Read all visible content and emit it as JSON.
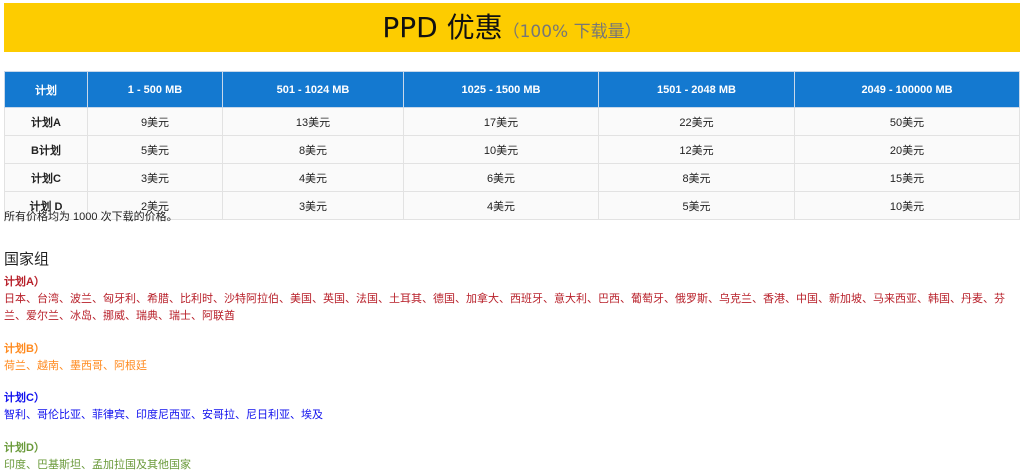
{
  "banner": {
    "title": "PPD 优惠",
    "subtitle": "（100% 下载量）"
  },
  "table": {
    "headers": [
      "计划",
      "1 - 500 MB",
      "501 - 1024 MB",
      "1025 - 1500 MB",
      "1501 - 2048 MB",
      "2049 - 100000 MB"
    ],
    "rows": [
      [
        "计划A",
        "9美元",
        "13美元",
        "17美元",
        "22美元",
        "50美元"
      ],
      [
        "B计划",
        "5美元",
        "8美元",
        "10美元",
        "12美元",
        "20美元"
      ],
      [
        "计划C",
        "3美元",
        "4美元",
        "6美元",
        "8美元",
        "15美元"
      ],
      [
        "计划 D",
        "2美元",
        "3美元",
        "4美元",
        "5美元",
        "10美元"
      ]
    ]
  },
  "note": "所有价格均为 1000 次下载的价格。",
  "groups_title": "国家组",
  "groups": [
    {
      "title": "计划A）",
      "countries": "日本、台湾、波兰、匈牙利、希腊、比利时、沙特阿拉伯、美国、英国、法国、土耳其、德国、加拿大、西班牙、意大利、巴西、葡萄牙、俄罗斯、乌克兰、香港、中国、新加坡、马来西亚、韩国、丹麦、芬兰、爱尔兰、冰岛、挪威、瑞典、瑞士、阿联酋",
      "color": "#b8202a"
    },
    {
      "title": "计划B）",
      "countries": "荷兰、越南、墨西哥、阿根廷",
      "color": "#ff8a1e"
    },
    {
      "title": "计划C）",
      "countries": "智利、哥伦比亚、菲律宾、印度尼西亚、安哥拉、尼日利亚、埃及",
      "color": "#1010ee"
    },
    {
      "title": "计划D）",
      "countries": "印度、巴基斯坦、孟加拉国及其他国家",
      "color": "#6a9a3a"
    }
  ]
}
